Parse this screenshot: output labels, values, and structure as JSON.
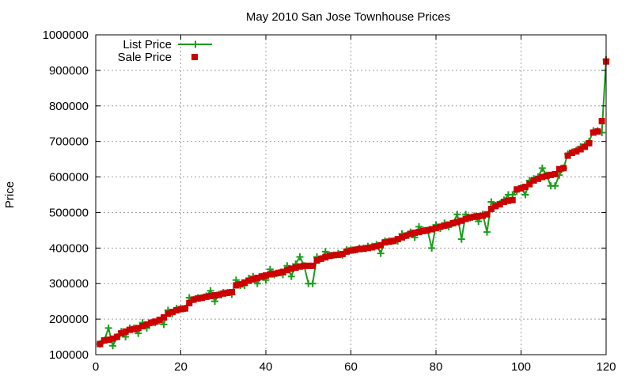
{
  "chart_data": {
    "type": "line",
    "title": "May 2010 San Jose Townhouse Prices",
    "xlabel": "",
    "ylabel": "Price",
    "xlim": [
      0,
      120
    ],
    "ylim": [
      100000,
      1000000
    ],
    "x_ticks": [
      0,
      20,
      40,
      60,
      80,
      100,
      120
    ],
    "y_ticks": [
      100000,
      200000,
      300000,
      400000,
      500000,
      600000,
      700000,
      800000,
      900000,
      1000000
    ],
    "grid": true,
    "legend_position": "top-left",
    "series": [
      {
        "name": "List Price",
        "style": "line+cross",
        "color": "#1a9e1a",
        "values": [
          [
            1,
            130000
          ],
          [
            2,
            140000
          ],
          [
            3,
            175000
          ],
          [
            4,
            125000
          ],
          [
            5,
            150000
          ],
          [
            6,
            165000
          ],
          [
            7,
            150000
          ],
          [
            8,
            175000
          ],
          [
            9,
            175000
          ],
          [
            10,
            160000
          ],
          [
            11,
            190000
          ],
          [
            12,
            175000
          ],
          [
            13,
            190000
          ],
          [
            14,
            190000
          ],
          [
            15,
            195000
          ],
          [
            16,
            185000
          ],
          [
            17,
            225000
          ],
          [
            18,
            215000
          ],
          [
            19,
            230000
          ],
          [
            20,
            230000
          ],
          [
            21,
            230000
          ],
          [
            22,
            260000
          ],
          [
            23,
            255000
          ],
          [
            24,
            260000
          ],
          [
            25,
            260000
          ],
          [
            26,
            265000
          ],
          [
            27,
            280000
          ],
          [
            28,
            250000
          ],
          [
            29,
            270000
          ],
          [
            30,
            275000
          ],
          [
            31,
            275000
          ],
          [
            32,
            270000
          ],
          [
            33,
            310000
          ],
          [
            34,
            295000
          ],
          [
            35,
            295000
          ],
          [
            36,
            315000
          ],
          [
            37,
            320000
          ],
          [
            38,
            300000
          ],
          [
            39,
            320000
          ],
          [
            40,
            310000
          ],
          [
            41,
            340000
          ],
          [
            42,
            325000
          ],
          [
            43,
            330000
          ],
          [
            44,
            325000
          ],
          [
            45,
            350000
          ],
          [
            46,
            320000
          ],
          [
            47,
            355000
          ],
          [
            48,
            375000
          ],
          [
            49,
            350000
          ],
          [
            50,
            300000
          ],
          [
            51,
            300000
          ],
          [
            52,
            375000
          ],
          [
            53,
            370000
          ],
          [
            54,
            390000
          ],
          [
            55,
            380000
          ],
          [
            56,
            380000
          ],
          [
            57,
            385000
          ],
          [
            58,
            380000
          ],
          [
            59,
            395000
          ],
          [
            60,
            395000
          ],
          [
            61,
            395000
          ],
          [
            62,
            400000
          ],
          [
            63,
            400000
          ],
          [
            64,
            405000
          ],
          [
            65,
            405000
          ],
          [
            66,
            410000
          ],
          [
            67,
            385000
          ],
          [
            68,
            420000
          ],
          [
            69,
            420000
          ],
          [
            70,
            420000
          ],
          [
            71,
            420000
          ],
          [
            72,
            440000
          ],
          [
            73,
            435000
          ],
          [
            74,
            445000
          ],
          [
            75,
            430000
          ],
          [
            76,
            460000
          ],
          [
            77,
            450000
          ],
          [
            78,
            450000
          ],
          [
            79,
            400000
          ],
          [
            80,
            465000
          ],
          [
            81,
            455000
          ],
          [
            82,
            470000
          ],
          [
            83,
            460000
          ],
          [
            84,
            470000
          ],
          [
            85,
            495000
          ],
          [
            86,
            425000
          ],
          [
            87,
            495000
          ],
          [
            88,
            485000
          ],
          [
            89,
            490000
          ],
          [
            90,
            475000
          ],
          [
            91,
            495000
          ],
          [
            92,
            445000
          ],
          [
            93,
            530000
          ],
          [
            94,
            520000
          ],
          [
            95,
            525000
          ],
          [
            96,
            535000
          ],
          [
            97,
            550000
          ],
          [
            98,
            550000
          ],
          [
            99,
            560000
          ],
          [
            100,
            570000
          ],
          [
            101,
            550000
          ],
          [
            102,
            590000
          ],
          [
            103,
            595000
          ],
          [
            104,
            600000
          ],
          [
            105,
            625000
          ],
          [
            106,
            605000
          ],
          [
            107,
            575000
          ],
          [
            108,
            575000
          ],
          [
            109,
            605000
          ],
          [
            110,
            625000
          ],
          [
            111,
            665000
          ],
          [
            112,
            670000
          ],
          [
            113,
            675000
          ],
          [
            114,
            685000
          ],
          [
            115,
            690000
          ],
          [
            116,
            700000
          ],
          [
            117,
            730000
          ],
          [
            118,
            730000
          ],
          [
            119,
            725000
          ],
          [
            120,
            930000
          ]
        ]
      },
      {
        "name": "Sale Price",
        "style": "square",
        "color": "#cc0000",
        "values": [
          [
            1,
            130000
          ],
          [
            2,
            140000
          ],
          [
            3,
            142000
          ],
          [
            4,
            145000
          ],
          [
            5,
            150000
          ],
          [
            6,
            160000
          ],
          [
            7,
            165000
          ],
          [
            8,
            170000
          ],
          [
            9,
            172000
          ],
          [
            10,
            175000
          ],
          [
            11,
            180000
          ],
          [
            12,
            185000
          ],
          [
            13,
            190000
          ],
          [
            14,
            193000
          ],
          [
            15,
            198000
          ],
          [
            16,
            205000
          ],
          [
            17,
            215000
          ],
          [
            18,
            220000
          ],
          [
            19,
            225000
          ],
          [
            20,
            228000
          ],
          [
            21,
            230000
          ],
          [
            22,
            245000
          ],
          [
            23,
            255000
          ],
          [
            24,
            258000
          ],
          [
            25,
            260000
          ],
          [
            26,
            263000
          ],
          [
            27,
            265000
          ],
          [
            28,
            267000
          ],
          [
            29,
            268000
          ],
          [
            30,
            272000
          ],
          [
            31,
            274000
          ],
          [
            32,
            276000
          ],
          [
            33,
            295000
          ],
          [
            34,
            298000
          ],
          [
            35,
            303000
          ],
          [
            36,
            308000
          ],
          [
            37,
            312000
          ],
          [
            38,
            316000
          ],
          [
            39,
            320000
          ],
          [
            40,
            323000
          ],
          [
            41,
            326000
          ],
          [
            42,
            328000
          ],
          [
            43,
            330000
          ],
          [
            44,
            333000
          ],
          [
            45,
            338000
          ],
          [
            46,
            342000
          ],
          [
            47,
            345000
          ],
          [
            48,
            348000
          ],
          [
            49,
            350000
          ],
          [
            50,
            350000
          ],
          [
            51,
            350000
          ],
          [
            52,
            365000
          ],
          [
            53,
            370000
          ],
          [
            54,
            374000
          ],
          [
            55,
            378000
          ],
          [
            56,
            380000
          ],
          [
            57,
            381000
          ],
          [
            58,
            383000
          ],
          [
            59,
            390000
          ],
          [
            60,
            393000
          ],
          [
            61,
            395000
          ],
          [
            62,
            397000
          ],
          [
            63,
            398000
          ],
          [
            64,
            400000
          ],
          [
            65,
            402000
          ],
          [
            66,
            405000
          ],
          [
            67,
            408000
          ],
          [
            68,
            416000
          ],
          [
            69,
            418000
          ],
          [
            70,
            420000
          ],
          [
            71,
            425000
          ],
          [
            72,
            430000
          ],
          [
            73,
            435000
          ],
          [
            74,
            440000
          ],
          [
            75,
            443000
          ],
          [
            76,
            445000
          ],
          [
            77,
            448000
          ],
          [
            78,
            450000
          ],
          [
            79,
            453000
          ],
          [
            80,
            456000
          ],
          [
            81,
            460000
          ],
          [
            82,
            463000
          ],
          [
            83,
            466000
          ],
          [
            84,
            470000
          ],
          [
            85,
            473000
          ],
          [
            86,
            477000
          ],
          [
            87,
            482000
          ],
          [
            88,
            486000
          ],
          [
            89,
            488000
          ],
          [
            90,
            490000
          ],
          [
            91,
            491000
          ],
          [
            92,
            495000
          ],
          [
            93,
            510000
          ],
          [
            94,
            518000
          ],
          [
            95,
            523000
          ],
          [
            96,
            530000
          ],
          [
            97,
            533000
          ],
          [
            98,
            535000
          ],
          [
            99,
            565000
          ],
          [
            100,
            568000
          ],
          [
            101,
            572000
          ],
          [
            102,
            580000
          ],
          [
            103,
            590000
          ],
          [
            104,
            595000
          ],
          [
            105,
            600000
          ],
          [
            106,
            603000
          ],
          [
            107,
            606000
          ],
          [
            108,
            608000
          ],
          [
            109,
            622000
          ],
          [
            110,
            625000
          ],
          [
            111,
            660000
          ],
          [
            112,
            668000
          ],
          [
            113,
            672000
          ],
          [
            114,
            678000
          ],
          [
            115,
            685000
          ],
          [
            116,
            695000
          ],
          [
            117,
            725000
          ],
          [
            118,
            728000
          ],
          [
            119,
            757000
          ],
          [
            120,
            925000
          ]
        ]
      }
    ]
  }
}
